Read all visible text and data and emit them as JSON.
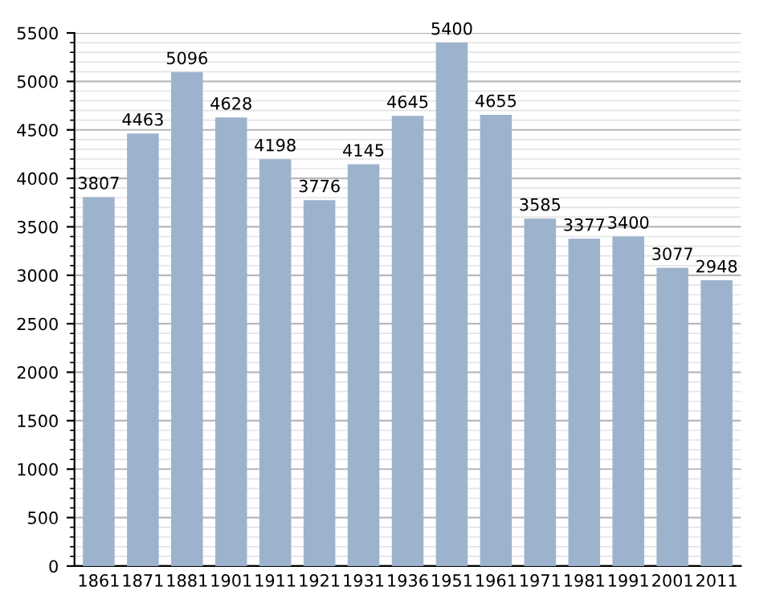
{
  "chart_data": {
    "type": "bar",
    "categories": [
      "1861",
      "1871",
      "1881",
      "1901",
      "1911",
      "1921",
      "1931",
      "1936",
      "1951",
      "1961",
      "1971",
      "1981",
      "1991",
      "2001",
      "2011"
    ],
    "values": [
      3807,
      4463,
      5096,
      4628,
      4198,
      3776,
      4145,
      4645,
      5400,
      4655,
      3585,
      3377,
      3400,
      3077,
      2948
    ],
    "color": "#9db3cd",
    "ylim": [
      0,
      5500
    ],
    "yticks": [
      0,
      500,
      1000,
      1500,
      2000,
      2500,
      3000,
      3500,
      4000,
      4500,
      5000,
      5500
    ],
    "grid": "y",
    "data_labels": true
  }
}
